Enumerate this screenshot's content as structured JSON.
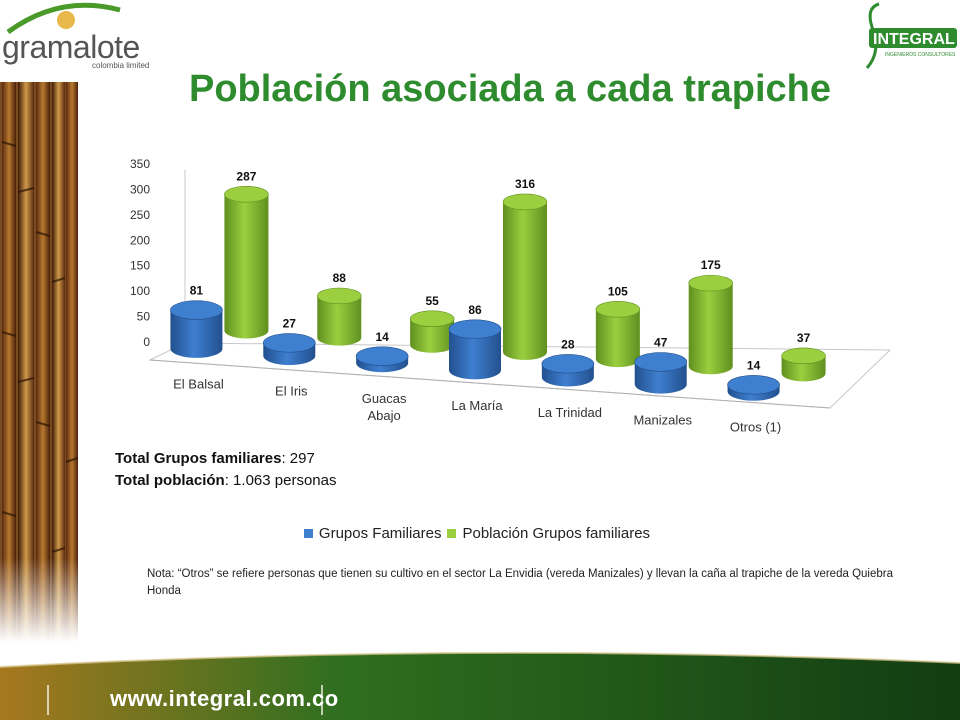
{
  "header": {
    "logo_left": {
      "name": "gramalote",
      "tagline": "colombia limited"
    },
    "logo_right": {
      "name": "INTEGRAL",
      "tagline": "INGENIEROS CONSULTORES"
    },
    "title": "Población asociada a cada trapiche"
  },
  "chart_data": {
    "type": "bar",
    "style": "3d-cylinder",
    "categories": [
      "El Balsal",
      "El Iris",
      "Guacas\nAbajo",
      "La María",
      "La Trinidad",
      "Manizales",
      "Otros (1)"
    ],
    "series": [
      {
        "name": "Grupos Familiares",
        "values": [
          81,
          27,
          14,
          86,
          28,
          47,
          14
        ],
        "color": "#3f7fd0"
      },
      {
        "name": "Población Grupos familiares",
        "values": [
          287,
          88,
          55,
          316,
          105,
          175,
          37
        ],
        "color": "#9bcf3f"
      }
    ],
    "yticks": [
      "0",
      "50",
      "100",
      "150",
      "200",
      "250",
      "300",
      "350"
    ],
    "ylim": [
      0,
      350
    ],
    "legend": "bottom"
  },
  "totals": {
    "line1_label": "Total Grupos familiares",
    "line1_value": ": 297",
    "line2_label": "Total población",
    "line2_value": ": 1.063 personas"
  },
  "note": "Nota: “Otros” se refiere personas que tienen su cultivo en el sector La Envidia (vereda Manizales) y llevan la caña al trapiche de la vereda Quiebra Honda",
  "footer": {
    "url": "www.integral.com.co"
  },
  "colors": {
    "title": "#2e8b2e",
    "blue": "#3f7fd0",
    "green": "#9bcf3f",
    "footer": "#1f5e1f"
  }
}
